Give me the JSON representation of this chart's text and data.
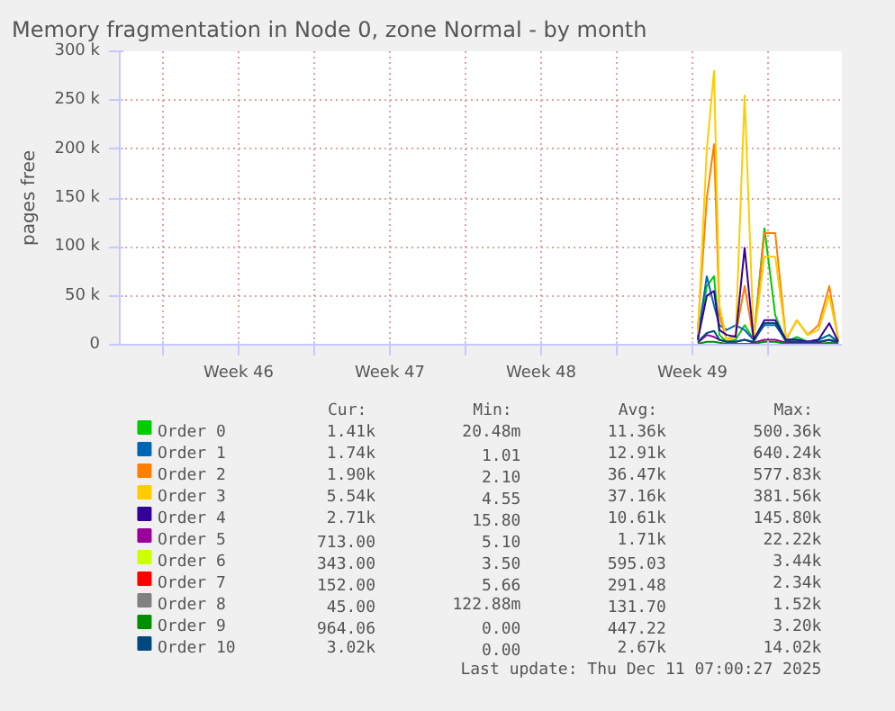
{
  "chart_data": {
    "type": "line",
    "title": "Memory fragmentation in Node 0, zone Normal - by month",
    "ylabel": "pages free",
    "x": [
      "2025-12-04T18:00",
      "2025-12-05T04:00",
      "2025-12-05T12:00",
      "2025-12-05T18:00",
      "2025-12-06T02:00",
      "2025-12-06T12:00",
      "2025-12-06T22:00",
      "2025-12-07T08:00",
      "2025-12-07T20:00",
      "2025-12-08T08:00",
      "2025-12-08T20:00",
      "2025-12-09T08:00",
      "2025-12-09T20:00",
      "2025-12-10T08:00",
      "2025-12-10T20:00",
      "2025-12-11T06:00"
    ],
    "xlim": [
      "2025-11-08T00:00",
      "2025-12-11T10:00"
    ],
    "xticks": [
      {
        "value": "2025-11-10T00:00",
        "label": null
      },
      {
        "value": "2025-11-13T12:00",
        "label": "Week 46"
      },
      {
        "value": "2025-11-17T00:00",
        "label": null
      },
      {
        "value": "2025-11-20T12:00",
        "label": "Week 47"
      },
      {
        "value": "2025-11-24T00:00",
        "label": null
      },
      {
        "value": "2025-11-27T12:00",
        "label": "Week 48"
      },
      {
        "value": "2025-12-01T00:00",
        "label": null
      },
      {
        "value": "2025-12-04T12:00",
        "label": "Week 49"
      },
      {
        "value": "2025-12-08T00:00",
        "label": null
      }
    ],
    "ylim": [
      0,
      300000
    ],
    "yticks": [
      0,
      {
        "value": 50000,
        "label": "50 k"
      },
      {
        "value": 100000,
        "label": "100 k"
      },
      {
        "value": 150000,
        "label": "150 k"
      },
      {
        "value": 200000,
        "label": "200 k"
      },
      {
        "value": 250000,
        "label": "250 k"
      },
      {
        "value": 300000,
        "label": "300 k"
      }
    ],
    "grid": true,
    "legend": "bottom",
    "series": [
      {
        "name": "Order 0",
        "color": "#00cc00",
        "values": [
          5000,
          60000,
          70000,
          10000,
          3000,
          5000,
          20000,
          5000,
          119000,
          30000,
          3000,
          8000,
          3000,
          5000,
          10000,
          2000
        ]
      },
      {
        "name": "Order 1",
        "color": "#0066b3",
        "values": [
          8000,
          70000,
          40000,
          20000,
          15000,
          20000,
          15000,
          5000,
          20000,
          20000,
          5000,
          5000,
          3000,
          5000,
          10000,
          3000
        ]
      },
      {
        "name": "Order 2",
        "color": "#ff8000",
        "values": [
          15000,
          150000,
          205000,
          30000,
          5000,
          10000,
          60000,
          5000,
          114000,
          114000,
          5000,
          25000,
          10000,
          20000,
          60000,
          5000
        ]
      },
      {
        "name": "Order 3",
        "color": "#ffcc00",
        "values": [
          10000,
          200000,
          280000,
          40000,
          5000,
          8000,
          255000,
          5000,
          90000,
          90000,
          5000,
          25000,
          10000,
          15000,
          50000,
          5000
        ]
      },
      {
        "name": "Order 4",
        "color": "#330099",
        "values": [
          5000,
          50000,
          55000,
          15000,
          10000,
          8000,
          99000,
          5000,
          25000,
          25000,
          5000,
          5000,
          3000,
          5000,
          22000,
          3000
        ]
      },
      {
        "name": "Order 5",
        "color": "#990099",
        "values": [
          2000,
          10000,
          8000,
          5000,
          3000,
          3000,
          5000,
          2000,
          5000,
          5000,
          2000,
          3000,
          2000,
          2000,
          5000,
          1000
        ]
      },
      {
        "name": "Order 6",
        "color": "#ccff00",
        "values": [
          null,
          null,
          null,
          null,
          null,
          null,
          null,
          null,
          null,
          null,
          null,
          null,
          null,
          null,
          null,
          null
        ]
      },
      {
        "name": "Order 7",
        "color": "#ff0000",
        "values": [
          null,
          null,
          null,
          null,
          null,
          null,
          null,
          null,
          null,
          null,
          null,
          null,
          null,
          null,
          null,
          null
        ]
      },
      {
        "name": "Order 8",
        "color": "#808080",
        "values": [
          null,
          null,
          null,
          null,
          null,
          null,
          null,
          null,
          null,
          null,
          null,
          null,
          null,
          null,
          null,
          null
        ]
      },
      {
        "name": "Order 9",
        "color": "#008f00",
        "values": [
          1000,
          3000,
          3000,
          2000,
          1000,
          1000,
          1000,
          1000,
          3000,
          3000,
          1000,
          1000,
          1000,
          1000,
          2000,
          1000
        ]
      },
      {
        "name": "Order 10",
        "color": "#00487d",
        "values": [
          3000,
          12000,
          14000,
          5000,
          3000,
          3000,
          5000,
          3000,
          22000,
          22000,
          3000,
          3000,
          3000,
          3000,
          5000,
          3000
        ]
      }
    ],
    "annotations": [
      "Cur:",
      "Min:",
      "Avg:",
      "Max:",
      "1.41k",
      "20.48m",
      "11.36k",
      "500.36k",
      "1.74k",
      "1.01",
      "12.91k",
      "640.24k",
      "1.90k",
      "2.10",
      "36.47k",
      "577.83k",
      "5.54k",
      "4.55",
      "37.16k",
      "381.56k",
      "2.71k",
      "15.80",
      "10.61k",
      "145.80k",
      "713.00",
      "5.10",
      "1.71k",
      "22.22k",
      "343.00",
      "3.50",
      "595.03",
      "3.44k",
      "152.00",
      "5.66",
      "291.48",
      "2.34k",
      "45.00",
      "122.88m",
      "131.70",
      "1.52k",
      "964.06",
      "0.00",
      "447.22",
      "3.20k",
      "3.02k",
      "0.00",
      "2.67k",
      "14.02k",
      "Last update: Thu Dec 11 07:00:27 2025"
    ]
  }
}
